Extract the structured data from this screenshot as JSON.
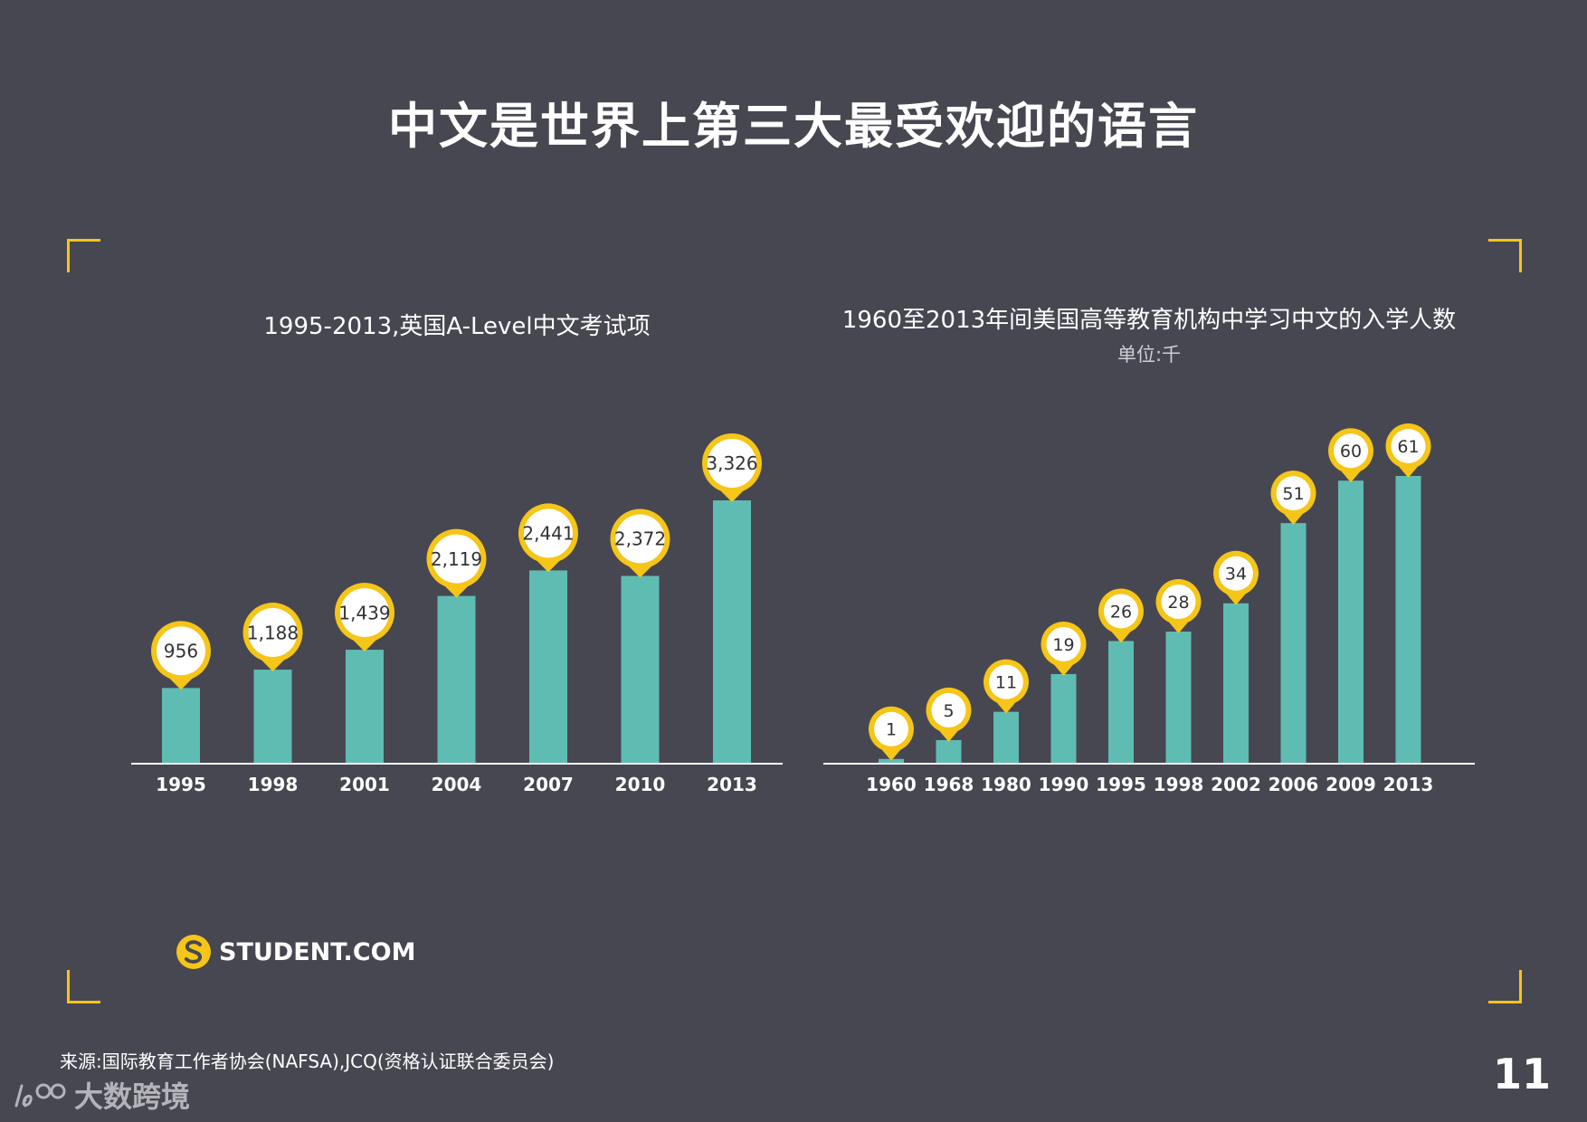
{
  "page": {
    "title": "中文是世界上第三大最受欢迎的语言",
    "logo_text": "STUDENT.COM",
    "source": "来源:国际教育工作者协会(NAFSA),JCQ(资格认证联合委员会)",
    "page_number": "11",
    "watermark_text": "大数跨境"
  },
  "colors": {
    "background": "#474752",
    "bar": "#5fbcb3",
    "accent": "#f5c518",
    "axis": "#ffffff"
  },
  "chart_data": [
    {
      "type": "bar",
      "title": "1995-2013,英国A-Level中文考试项",
      "categories": [
        "1995",
        "1998",
        "2001",
        "2004",
        "2007",
        "2010",
        "2013"
      ],
      "values": [
        956,
        1188,
        1439,
        2119,
        2441,
        2372,
        3326
      ],
      "labels": [
        "956",
        "1,188",
        "1,439",
        "2,119",
        "2,441",
        "2,372",
        "3,326"
      ],
      "ylim": [
        0,
        3326
      ]
    },
    {
      "type": "bar",
      "title": "1960至2013年间美国高等教育机构中学习中文的入学人数",
      "subtitle": "单位:千",
      "categories": [
        "1960",
        "1968",
        "1980",
        "1990",
        "1995",
        "1998",
        "2002",
        "2006",
        "2009",
        "2013"
      ],
      "values": [
        1,
        5,
        11,
        19,
        26,
        28,
        34,
        51,
        60,
        61
      ],
      "labels": [
        "1",
        "5",
        "11",
        "19",
        "26",
        "28",
        "34",
        "51",
        "60",
        "61"
      ],
      "ylim": [
        0,
        61
      ]
    }
  ]
}
